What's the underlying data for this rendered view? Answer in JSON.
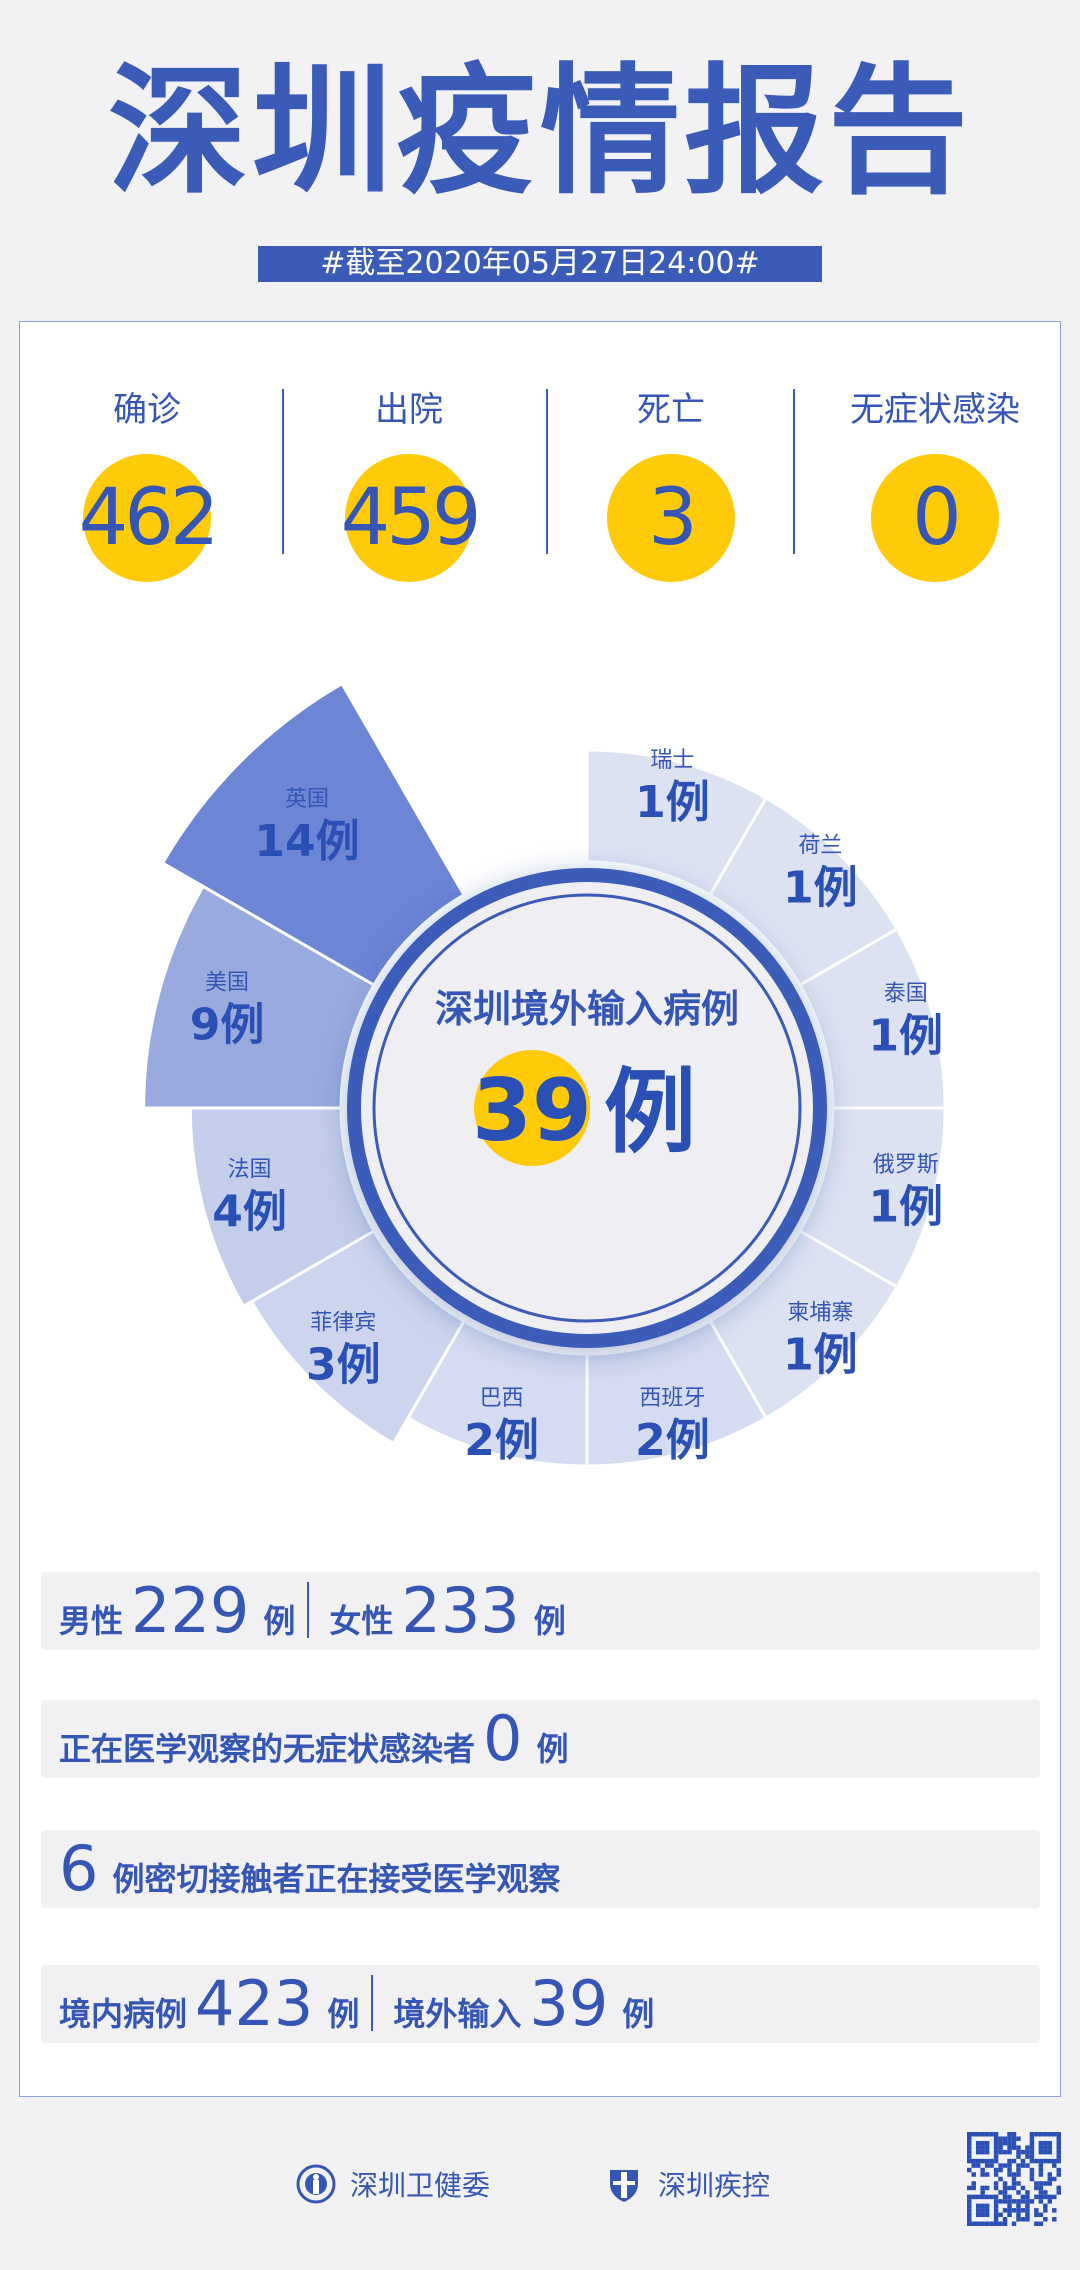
{
  "header": {
    "title": "深圳疫情报告",
    "subtitle": "#截至2020年05月27日24:00#"
  },
  "colors": {
    "primary": "#3a5bb8",
    "accent": "#ffca08"
  },
  "stats": [
    {
      "label": "确诊",
      "value": "462"
    },
    {
      "label": "出院",
      "value": "459"
    },
    {
      "label": "死亡",
      "value": "3"
    },
    {
      "label": "无症状感染",
      "value": "0"
    }
  ],
  "chart_data": {
    "type": "pie",
    "title": "深圳境外输入病例",
    "total": "39",
    "unit": "例",
    "categories": [
      "瑞士",
      "荷兰",
      "泰国",
      "俄罗斯",
      "柬埔寨",
      "西班牙",
      "巴西",
      "菲律宾",
      "法国",
      "美国",
      "英国"
    ],
    "values": [
      1,
      1,
      1,
      1,
      1,
      2,
      2,
      3,
      4,
      9,
      14
    ]
  },
  "rows": {
    "gender": {
      "male_label": "男性",
      "male": "229",
      "female_label": "女性",
      "female": "233",
      "unit": "例"
    },
    "asymptomatic": {
      "label": "正在医学观察的无症状感染者",
      "value": "0",
      "unit": "例"
    },
    "contacts": {
      "value": "6",
      "label": "例密切接触者正在接受医学观察"
    },
    "origin": {
      "local_label": "境内病例",
      "local": "423",
      "imported_label": "境外输入",
      "imported": "39",
      "unit": "例"
    }
  },
  "footer": {
    "org1": "深圳卫健委",
    "org2": "深圳疾控",
    "org1_icon": "health-commission-emblem",
    "org2_icon": "cdc-shield-logo"
  }
}
